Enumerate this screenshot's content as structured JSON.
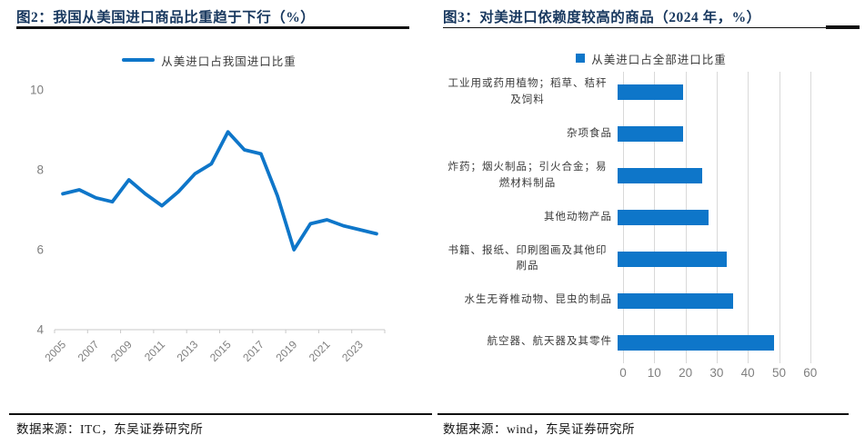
{
  "colors": {
    "accent_blue": "#0e76c9",
    "title_navy": "#17375e",
    "axis_gray": "#7f7f7f",
    "gridline_gray": "#d9d9d9",
    "axis_line_gray": "#c9c9c9",
    "rule_black": "#101010",
    "label_dark": "#3a3a3a"
  },
  "chart_data": [
    {
      "id": "fig2",
      "type": "line",
      "title": "图2：我国从美国进口商品比重趋于下行（%）",
      "legend": [
        "从美进口占我国进口比重"
      ],
      "x": [
        2005,
        2006,
        2007,
        2008,
        2009,
        2010,
        2011,
        2012,
        2013,
        2014,
        2015,
        2016,
        2017,
        2018,
        2019,
        2020,
        2021,
        2022,
        2023,
        2024
      ],
      "series": [
        {
          "name": "从美进口占我国进口比重",
          "values": [
            7.4,
            7.5,
            7.3,
            7.2,
            7.75,
            7.4,
            7.1,
            7.45,
            7.9,
            8.15,
            8.95,
            8.5,
            8.4,
            7.35,
            6.0,
            6.65,
            6.75,
            6.6,
            6.5,
            6.4
          ]
        }
      ],
      "ylim": [
        4,
        10
      ],
      "y_ticks": [
        4,
        6,
        8,
        10
      ],
      "x_tick_labels": [
        "2005",
        "2007",
        "2009",
        "2011",
        "2013",
        "2015",
        "2017",
        "2019",
        "2021",
        "2023"
      ],
      "grid": false,
      "legend_position": "top",
      "source": "数据来源：ITC，东吴证券研究所"
    },
    {
      "id": "fig3",
      "type": "bar",
      "orientation": "horizontal",
      "title": "图3：对美进口依赖度较高的商品（2024 年，%）",
      "legend": [
        "从美进口占全部进口比重"
      ],
      "categories": [
        "工业用或药用植物；稻草、秸秆及饲料",
        "杂项食品",
        "炸药；烟火制品；引火合金；易燃材料制品",
        "其他动物产品",
        "书籍、报纸、印刷图画及其他印刷品",
        "水生无脊椎动物、昆虫的制品",
        "航空器、航天器及其零件"
      ],
      "values": [
        21,
        21,
        27,
        29,
        35,
        37,
        50
      ],
      "xlim": [
        0,
        60
      ],
      "x_ticks": [
        0,
        10,
        20,
        30,
        40,
        50,
        60
      ],
      "grid": true,
      "legend_position": "top",
      "source": "数据来源：wind，东吴证券研究所"
    }
  ]
}
